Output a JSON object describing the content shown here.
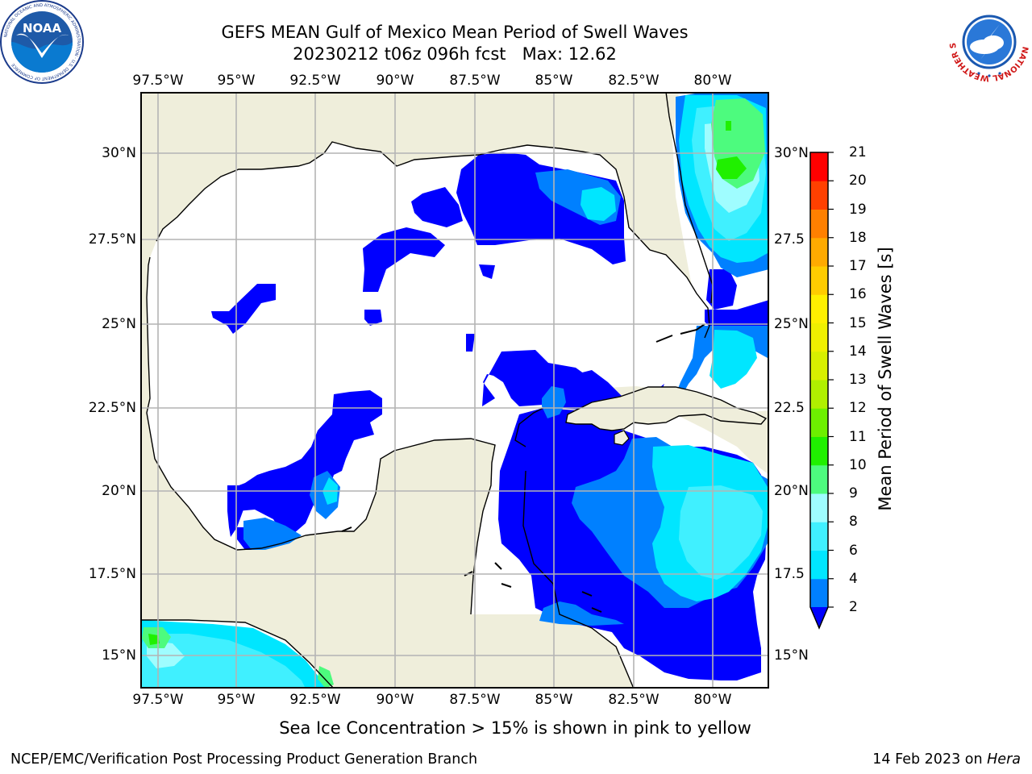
{
  "title": {
    "line1": "GEFS MEAN Gulf of Mexico Mean Period of Swell Waves",
    "line2": "20230212 t06z 096h fcst   Max: 12.62"
  },
  "axes": {
    "lon_top": [
      "97.5°W",
      "95°W",
      "92.5°W",
      "90°W",
      "87.5°W",
      "85°W",
      "82.5°W",
      "80°W"
    ],
    "lon_bottom": [
      "97.5°W",
      "95°W",
      "92.5°W",
      "90°W",
      "87.5°W",
      "85°W",
      "82.5°W",
      "80°W"
    ],
    "lat_left": [
      "30°N",
      "27.5°N",
      "25°N",
      "22.5°N",
      "20°N",
      "17.5°N",
      "15°N"
    ],
    "lat_right": [
      "30°N",
      "27.5",
      "25°N",
      "22.5",
      "20°N",
      "17.5",
      "15°N"
    ]
  },
  "colorbar": {
    "label": "Mean Period of Swell Waves [s]",
    "ticks": [
      "2",
      "4",
      "6",
      "8",
      "9",
      "10",
      "11",
      "12",
      "13",
      "14",
      "15",
      "16",
      "17",
      "18",
      "19",
      "20",
      "21"
    ],
    "colors": [
      "#0000ff",
      "#0080ff",
      "#00e6ff",
      "#40f0ff",
      "#9ffdff",
      "#4dfb7e",
      "#20f000",
      "#6df000",
      "#b0f000",
      "#d8f000",
      "#f0f000",
      "#fff000",
      "#ffcc00",
      "#ffaa00",
      "#ff8000",
      "#ff4000",
      "#ff0000"
    ],
    "extend": "min"
  },
  "footnote": "Sea Ice Concentration > 15% is shown in pink to yellow",
  "credit": "NCEP/EMC/Verification Post Processing Product Generation Branch",
  "date_prefix": "14 Feb 2023 on ",
  "date_system": "Hera",
  "logos": {
    "left_text": "NOAA",
    "left_ring": "NATIONAL OCEANIC AND ATMOSPHERIC ADMINISTRATION · U.S. DEPARTMENT OF COMMERCE",
    "right_ring": "NATIONAL WEATHER SERVICE"
  },
  "map_colors": {
    "land": "#efeedb",
    "grid": "#b4b4b4",
    "swell_2_4": "#0000ff",
    "swell_4_6": "#0080ff",
    "swell_6_8": "#00e6ff",
    "swell_8_9": "#40f0ff",
    "swell_9_10": "#9ffdff",
    "swell_10_11": "#4dfb7e",
    "swell_11_12": "#20f000"
  }
}
